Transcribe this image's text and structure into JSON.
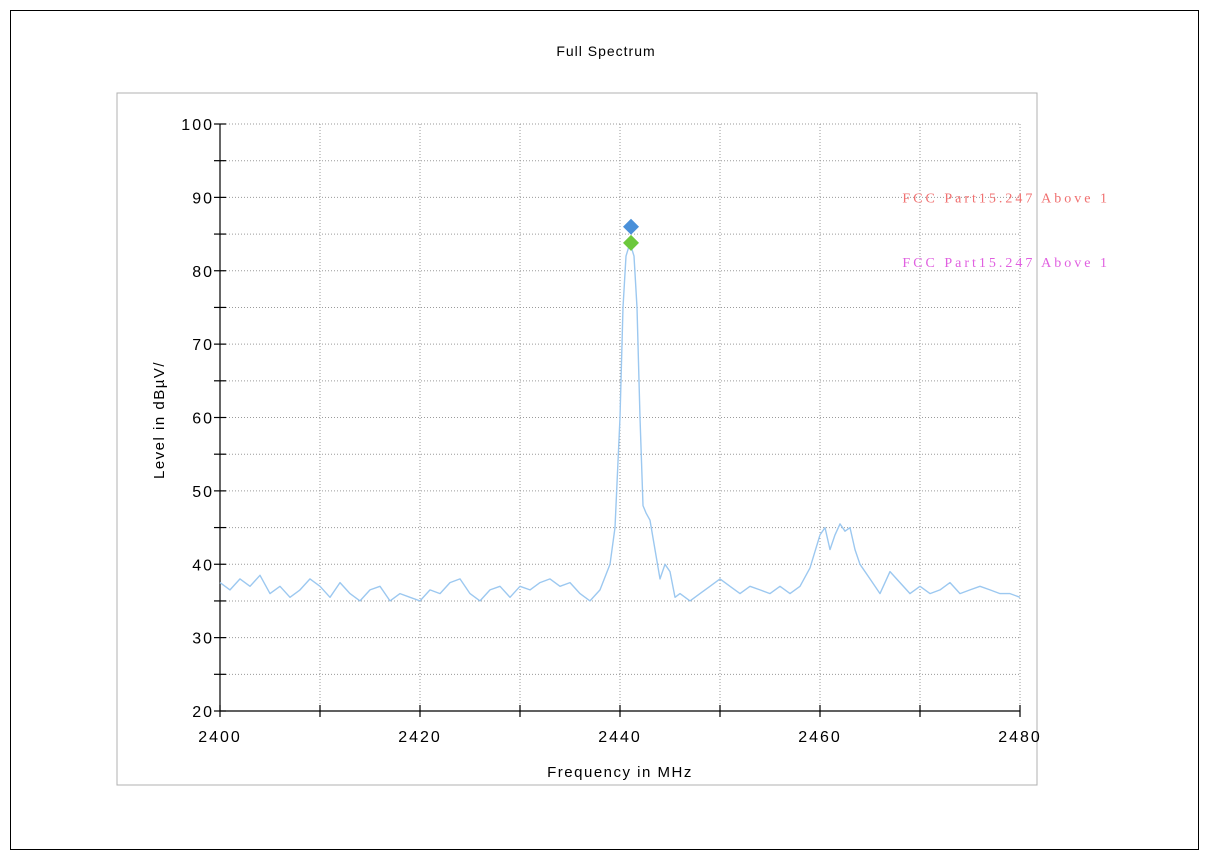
{
  "chart_data": {
    "type": "line",
    "title": "Full Spectrum",
    "xlabel": "Frequency in MHz",
    "ylabel": "Level in dBµV/",
    "xlim": [
      2400,
      2480
    ],
    "ylim": [
      20,
      100
    ],
    "x_ticks": [
      2400,
      2420,
      2440,
      2460,
      2480
    ],
    "y_ticks": [
      20,
      30,
      40,
      50,
      60,
      70,
      80,
      90,
      100
    ],
    "grid": true,
    "limit_labels": [
      {
        "text": "FCC Part15.247 Above 1",
        "color": "#f07070"
      },
      {
        "text": "FCC Part15.247 Above 1",
        "color": "#e060e0"
      }
    ],
    "markers": [
      {
        "x": 2441.1,
        "y": 86.0,
        "color": "#4a90d9"
      },
      {
        "x": 2441.1,
        "y": 83.8,
        "color": "#6cc83c"
      }
    ],
    "series": [
      {
        "color": "#9cc8f0",
        "x": [
          2400,
          2401,
          2402,
          2403,
          2404,
          2405,
          2406,
          2407,
          2408,
          2409,
          2410,
          2411,
          2412,
          2413,
          2414,
          2415,
          2416,
          2417,
          2418,
          2419,
          2420,
          2421,
          2422,
          2423,
          2424,
          2425,
          2426,
          2427,
          2428,
          2429,
          2430,
          2431,
          2432,
          2433,
          2434,
          2435,
          2436,
          2437,
          2438,
          2439,
          2439.5,
          2440,
          2440.3,
          2440.6,
          2441,
          2441.4,
          2441.7,
          2442,
          2442.3,
          2442.6,
          2443,
          2443.5,
          2444,
          2444.5,
          2445,
          2445.5,
          2446,
          2447,
          2448,
          2449,
          2450,
          2451,
          2452,
          2453,
          2454,
          2455,
          2456,
          2457,
          2458,
          2459,
          2460,
          2460.5,
          2461,
          2461.5,
          2462,
          2462.5,
          2463,
          2463.5,
          2464,
          2465,
          2466,
          2467,
          2468,
          2469,
          2470,
          2471,
          2472,
          2473,
          2474,
          2475,
          2476,
          2477,
          2478,
          2479,
          2480
        ],
        "y": [
          37.5,
          36.5,
          38,
          37,
          38.5,
          36,
          37,
          35.5,
          36.5,
          38,
          37,
          35.5,
          37.5,
          36,
          35,
          36.5,
          37,
          35,
          36,
          35.5,
          35,
          36.5,
          36,
          37.5,
          38,
          36,
          35,
          36.5,
          37,
          35.5,
          37,
          36.5,
          37.5,
          38,
          37,
          37.5,
          36,
          35,
          36.5,
          40,
          45,
          60,
          75,
          82,
          83.8,
          82,
          75,
          60,
          48,
          47,
          46,
          42,
          38,
          40,
          39,
          35.5,
          36,
          35,
          36,
          37,
          38,
          37,
          36,
          37,
          36.5,
          36,
          37,
          36,
          37,
          39.5,
          44,
          45,
          42,
          44,
          45.5,
          44.5,
          45,
          42,
          40,
          38,
          36,
          39,
          37.5,
          36,
          37,
          36,
          36.5,
          37.5,
          36,
          36.5,
          37,
          36.5,
          36,
          36,
          35.5
        ]
      }
    ]
  }
}
